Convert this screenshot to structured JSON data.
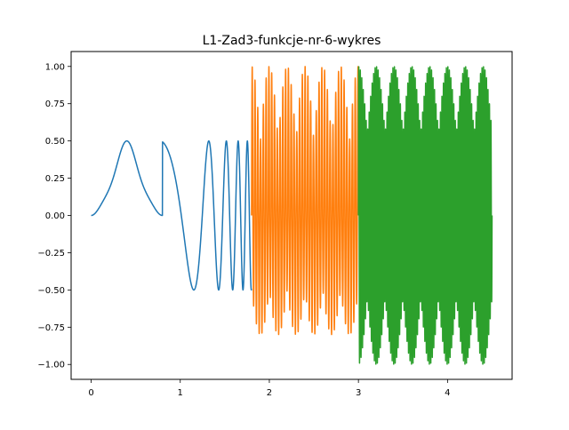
{
  "chart_data": {
    "type": "line",
    "title": "L1-Zad3-funkcje-nr-6-wykres",
    "xlabel": "",
    "ylabel": "",
    "xlim": [
      -0.225,
      4.725
    ],
    "ylim": [
      -1.1,
      1.1
    ],
    "xticks": [
      0,
      1,
      2,
      3,
      4
    ],
    "xtick_labels": [
      "0",
      "1",
      "2",
      "3",
      "4"
    ],
    "yticks": [
      -1.0,
      -0.75,
      -0.5,
      -0.25,
      0.0,
      0.25,
      0.5,
      0.75,
      1.0
    ],
    "ytick_labels": [
      "−1.00",
      "−0.75",
      "−0.50",
      "−0.25",
      "0.00",
      "0.25",
      "0.50",
      "0.75",
      "1.00"
    ],
    "grid": false,
    "legend": "none",
    "series": [
      {
        "color": "#1f77b4",
        "x_range": [
          0,
          1.8
        ],
        "segments": [
          {
            "x": [
              0,
              0.8
            ],
            "y_min": 0,
            "y_max": 0.5,
            "note": "smooth rise with two humps near 0.5 and a dip to about 0.42"
          },
          {
            "x": [
              0.8,
              1.8
            ],
            "y_min": -0.5,
            "y_max": 0.5,
            "note": "chirp oscillation with increasing frequency, amplitude 0.5"
          }
        ]
      },
      {
        "color": "#ff7f0e",
        "x_range": [
          1.8,
          3.0
        ],
        "y_min": -1.0,
        "y_max": 1.0,
        "note": "fast oscillation with amplitude-modulated envelope between about -0.5 and 1.0"
      },
      {
        "color": "#2ca02c",
        "x_range": [
          3.0,
          4.5
        ],
        "y_min": -1.0,
        "y_max": 1.0,
        "note": "very fast oscillation with beating envelope, peaks near ±1.0"
      }
    ]
  }
}
